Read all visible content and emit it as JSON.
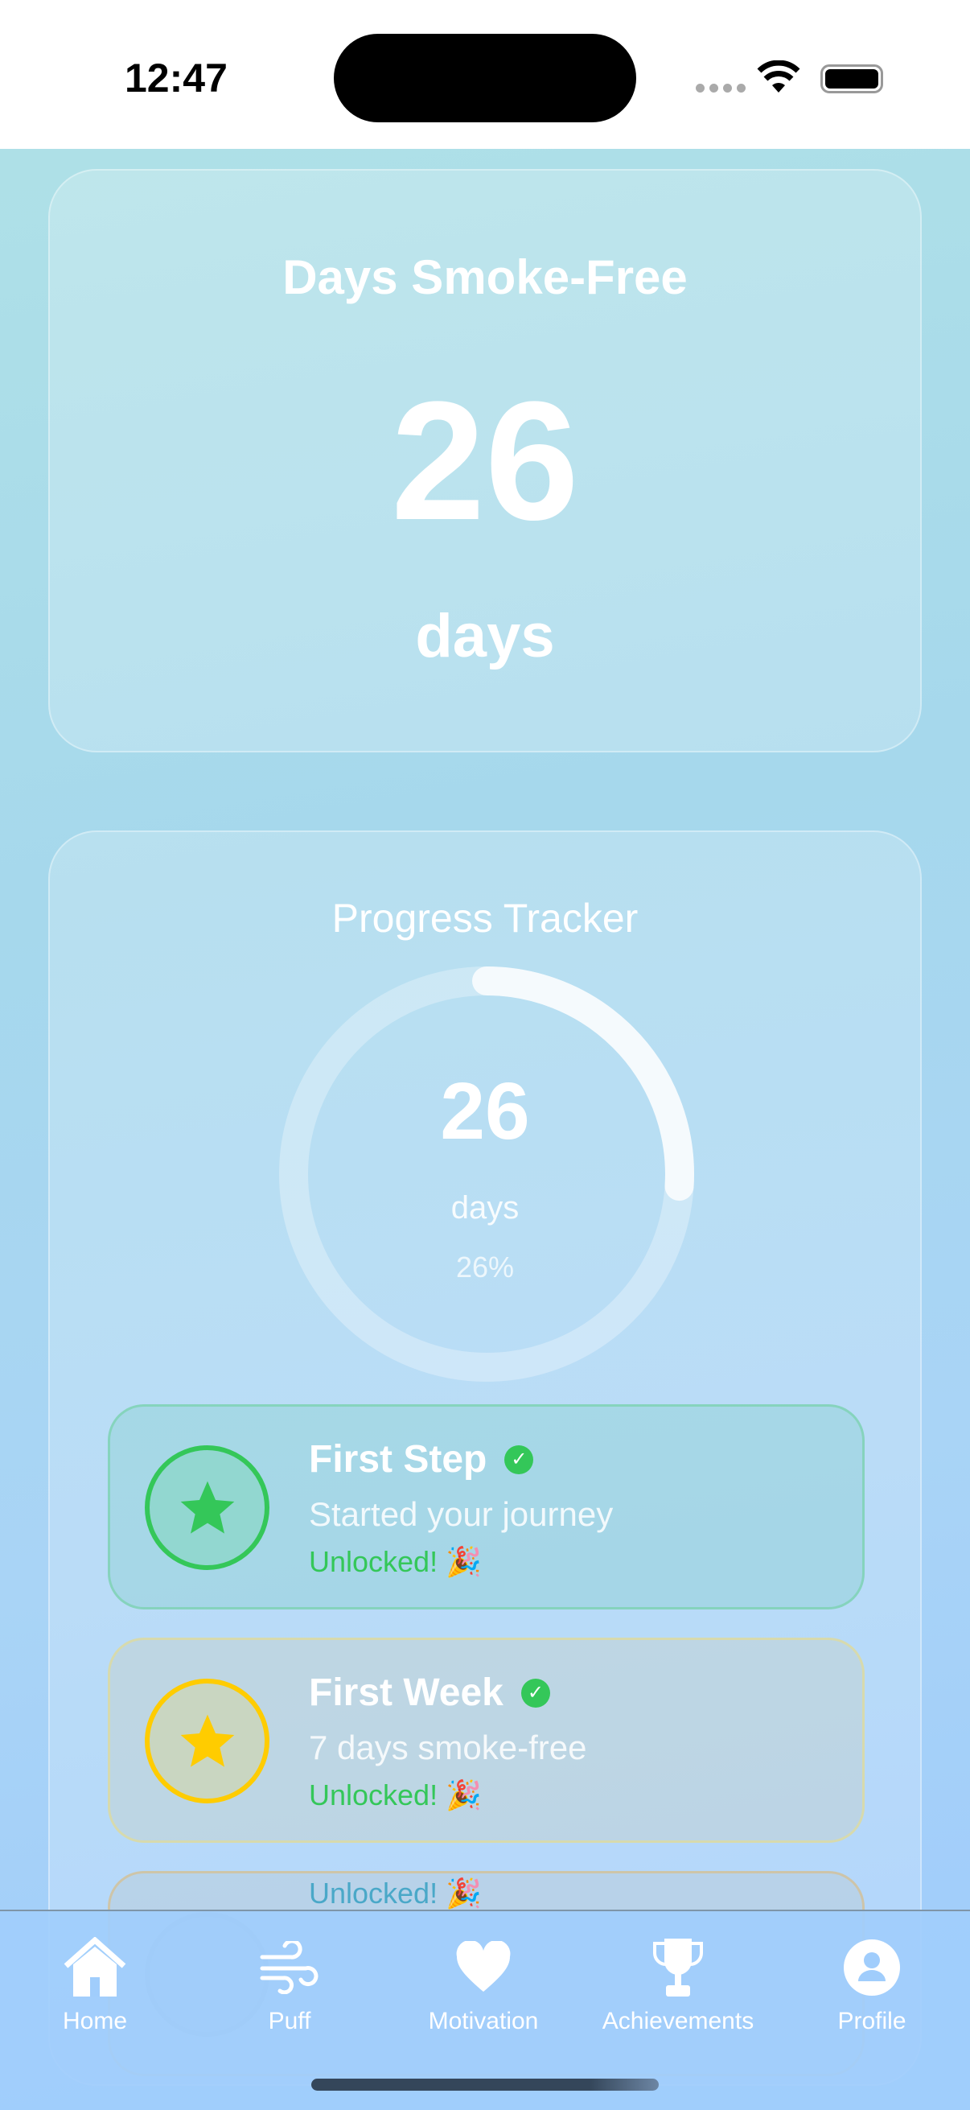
{
  "status_bar": {
    "time": "12:47"
  },
  "days_card": {
    "title": "Days Smoke-Free",
    "count": "26",
    "unit": "days"
  },
  "progress": {
    "title": "Progress Tracker",
    "count": "26",
    "unit": "days",
    "percent_label": "26%",
    "percent": 26
  },
  "achievements": [
    {
      "title": "First Step",
      "description": "Started your journey",
      "status": "Unlocked! 🎉",
      "icon": "star-icon",
      "color": "#34C759"
    },
    {
      "title": "First Week",
      "description": "7 days smoke-free",
      "status": "Unlocked! 🎉",
      "icon": "star-icon",
      "color": "#FFCC00"
    },
    {
      "title": "",
      "description": "",
      "status": "Unlocked! 🎉",
      "icon": "moon-icon",
      "color": "#C8B48A"
    }
  ],
  "tabs": [
    {
      "label": "Home",
      "icon": "house-icon"
    },
    {
      "label": "Puff",
      "icon": "wind-icon"
    },
    {
      "label": "Motivation",
      "icon": "heart-icon"
    },
    {
      "label": "Achievements",
      "icon": "trophy-icon"
    },
    {
      "label": "Profile",
      "icon": "person-circle-icon"
    }
  ]
}
